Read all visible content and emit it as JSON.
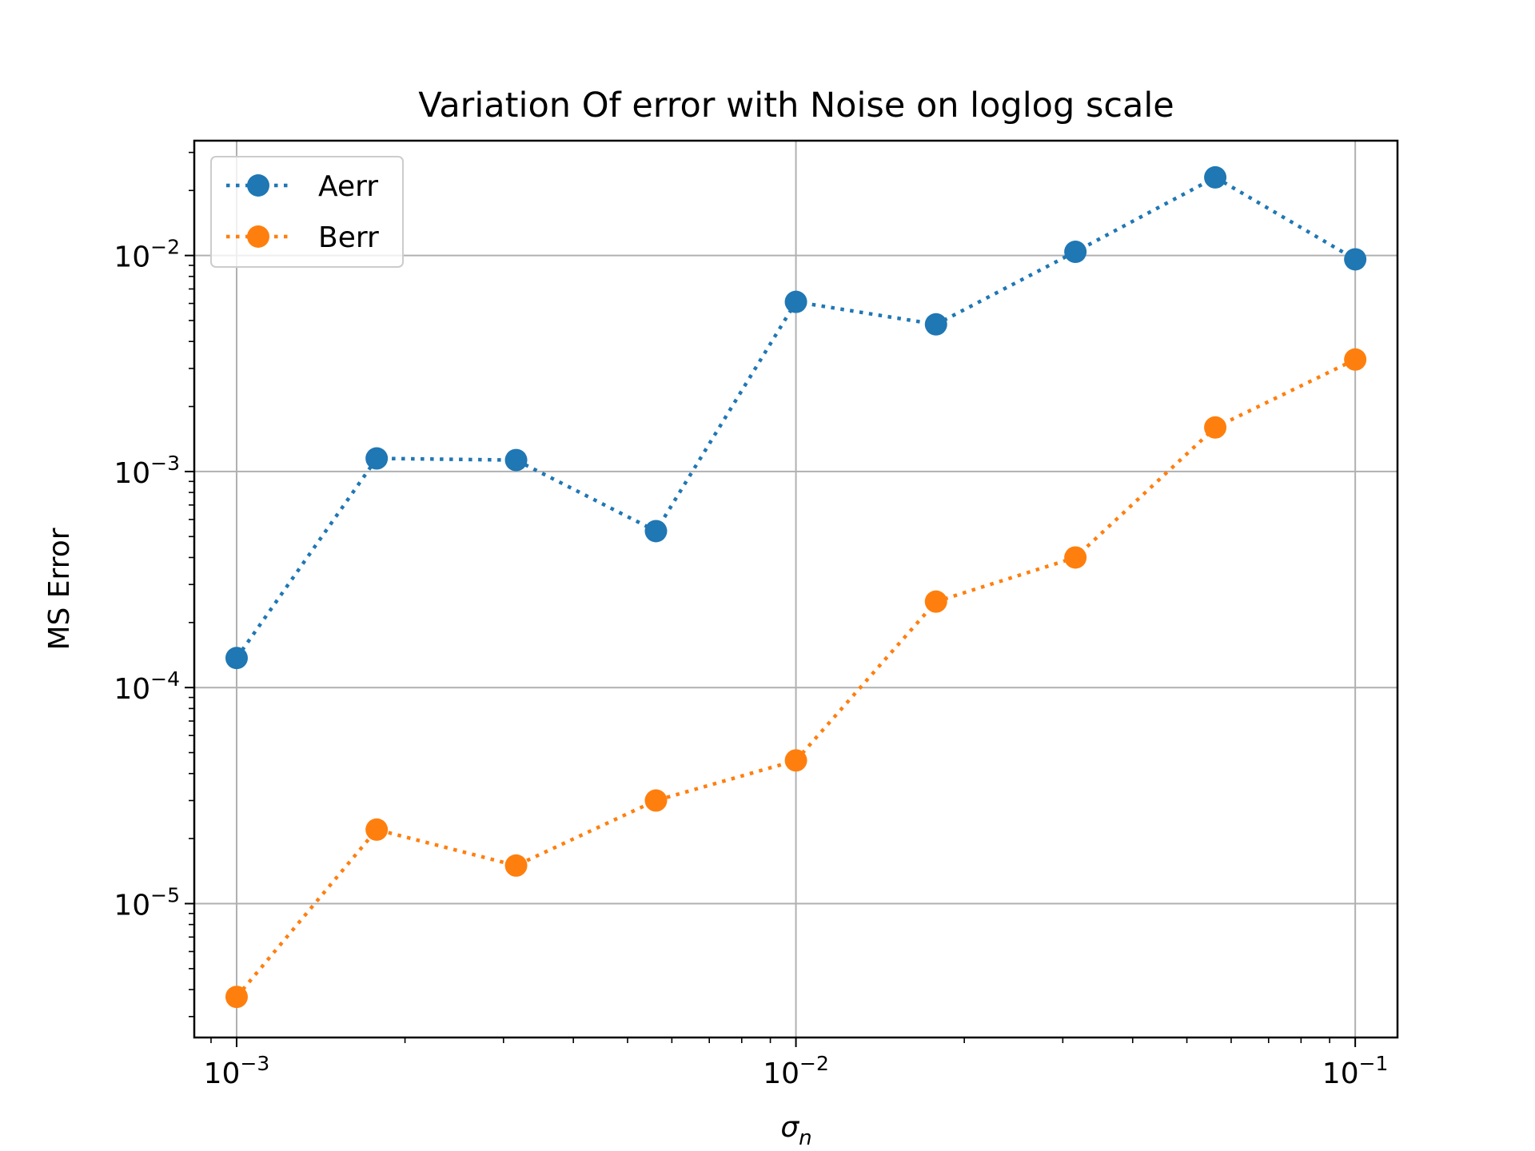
{
  "chart_data": {
    "type": "line",
    "title": "Variation Of error with Noise on loglog scale",
    "xlabel_symbol": "σ",
    "xlabel_sub": "n",
    "ylabel": "MS Error",
    "xscale": "log",
    "yscale": "log",
    "xlim": [
      0.00084,
      0.119
    ],
    "ylim": [
      2.4e-06,
      0.034
    ],
    "grid": true,
    "legend_position": "top-left",
    "x": [
      0.001,
      0.00178,
      0.00316,
      0.00562,
      0.01,
      0.0178,
      0.0316,
      0.0562,
      0.1
    ],
    "series": [
      {
        "name": "Aerr",
        "color": "#1f77b4",
        "values": [
          0.000137,
          0.00115,
          0.00113,
          0.00053,
          0.0061,
          0.0048,
          0.0104,
          0.023,
          0.0096
        ]
      },
      {
        "name": "Berr",
        "color": "#ff7f0e",
        "values": [
          3.7e-06,
          2.2e-05,
          1.5e-05,
          3e-05,
          4.6e-05,
          0.00025,
          0.0004,
          0.0016,
          0.0033
        ]
      }
    ],
    "x_ticks": [
      {
        "value": 0.001,
        "base": "10",
        "exp": "−3"
      },
      {
        "value": 0.01,
        "base": "10",
        "exp": "−2"
      },
      {
        "value": 0.1,
        "base": "10",
        "exp": "−1"
      }
    ],
    "y_ticks": [
      {
        "value": 1e-05,
        "base": "10",
        "exp": "−5"
      },
      {
        "value": 0.0001,
        "base": "10",
        "exp": "−4"
      },
      {
        "value": 0.001,
        "base": "10",
        "exp": "−3"
      },
      {
        "value": 0.01,
        "base": "10",
        "exp": "−2"
      }
    ]
  }
}
